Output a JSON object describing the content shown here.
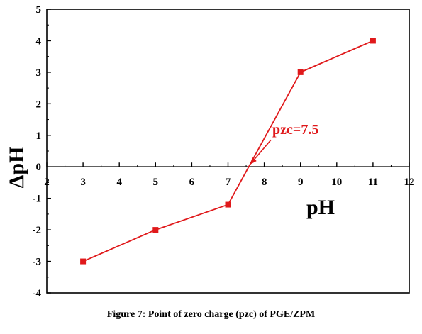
{
  "chart_data": {
    "type": "line",
    "xlabel": "pH",
    "ylabel": "ΔpH",
    "xlim": [
      2,
      12
    ],
    "ylim": [
      -4,
      5
    ],
    "xticks": [
      2,
      3,
      4,
      5,
      6,
      7,
      8,
      9,
      10,
      11,
      12
    ],
    "yticks": [
      5,
      4,
      3,
      2,
      1,
      0,
      -1,
      -2,
      -3,
      -4
    ],
    "x_axis_at_y": 0,
    "grid": false,
    "series": [
      {
        "x": [
          3,
          5,
          7,
          9,
          11
        ],
        "y": [
          -3,
          -2,
          -1.2,
          3,
          4
        ],
        "marker": "square",
        "color": "#e0191b"
      }
    ],
    "annotations": [
      {
        "text": "pzc=7.5",
        "points_to": {
          "x": 7.5,
          "y": 0
        },
        "color": "#e0191b"
      }
    ]
  },
  "caption": "Figure 7: Point of zero charge (pzc) of PGE/ZPM"
}
